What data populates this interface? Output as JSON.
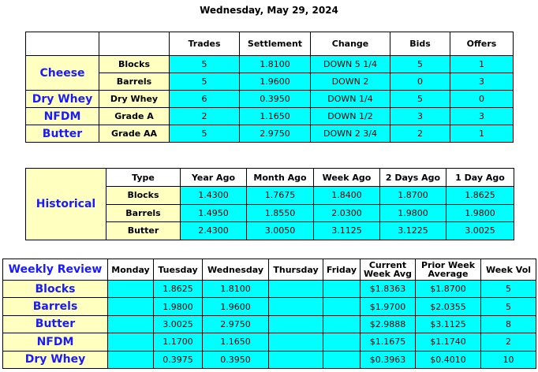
{
  "title": "Wednesday, May 29, 2024",
  "market": {
    "headers": [
      "Trades",
      "Settlement",
      "Change",
      "Bids",
      "Offers"
    ],
    "groups": [
      {
        "label": "Cheese",
        "rows": [
          {
            "product": "Blocks",
            "cells": [
              "5",
              "1.8100",
              "DOWN 5 1/4",
              "5",
              "1"
            ]
          },
          {
            "product": "Barrels",
            "cells": [
              "5",
              "1.9600",
              "DOWN 2",
              "0",
              "3"
            ]
          }
        ]
      },
      {
        "label": "Dry Whey",
        "rows": [
          {
            "product": "Dry Whey",
            "cells": [
              "6",
              "0.3950",
              "DOWN 1/4",
              "5",
              "0"
            ]
          }
        ]
      },
      {
        "label": "NFDM",
        "rows": [
          {
            "product": "Grade A",
            "cells": [
              "2",
              "1.1650",
              "DOWN 1/2",
              "3",
              "3"
            ]
          }
        ]
      },
      {
        "label": "Butter",
        "rows": [
          {
            "product": "Grade AA",
            "cells": [
              "5",
              "2.9750",
              "DOWN 2 3/4",
              "2",
              "1"
            ]
          }
        ]
      }
    ]
  },
  "historical": {
    "label": "Historical",
    "headers": [
      "Type",
      "Year Ago",
      "Month Ago",
      "Week Ago",
      "2 Days Ago",
      "1 Day Ago"
    ],
    "rows": [
      {
        "type": "Blocks",
        "cells": [
          "1.4300",
          "1.7675",
          "1.8400",
          "1.8700",
          "1.8625"
        ]
      },
      {
        "type": "Barrels",
        "cells": [
          "1.4950",
          "1.8550",
          "2.0300",
          "1.9800",
          "1.9800"
        ]
      },
      {
        "type": "Butter",
        "cells": [
          "2.4300",
          "3.0050",
          "3.1125",
          "3.1225",
          "3.0025"
        ]
      }
    ]
  },
  "weekly": {
    "label": "Weekly Review",
    "headers": [
      "Monday",
      "Tuesday",
      "Wednesday",
      "Thursday",
      "Friday",
      "Current Week Avg",
      "Prior Week Average",
      "Week Vol"
    ],
    "rows": [
      {
        "name": "Blocks",
        "cells": [
          null,
          "1.8625",
          "1.8100",
          null,
          null,
          "$1.8363",
          "$1.8700",
          "5"
        ]
      },
      {
        "name": "Barrels",
        "cells": [
          null,
          "1.9800",
          "1.9600",
          null,
          null,
          "$1.9700",
          "$2.0355",
          "5"
        ]
      },
      {
        "name": "Butter",
        "cells": [
          null,
          "3.0025",
          "2.9750",
          null,
          null,
          "$2.9888",
          "$3.1125",
          "8"
        ]
      },
      {
        "name": "NFDM",
        "cells": [
          null,
          "1.1700",
          "1.1650",
          null,
          null,
          "$1.1675",
          "$1.1740",
          "2"
        ]
      },
      {
        "name": "Dry Whey",
        "cells": [
          null,
          "0.3975",
          "0.3950",
          null,
          null,
          "$0.3963",
          "$0.4010",
          "10"
        ]
      }
    ]
  }
}
